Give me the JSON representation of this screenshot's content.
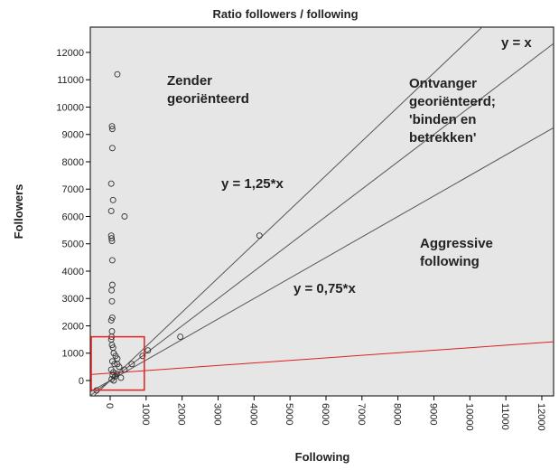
{
  "chart_data": {
    "type": "scatter",
    "title": "Ratio followers / following",
    "xlabel": "Following",
    "ylabel": "Followers",
    "xlim": [
      -552,
      12327
    ],
    "ylim": [
      -562,
      12925
    ],
    "xticks": [
      0,
      1000,
      2000,
      3000,
      4000,
      5000,
      6000,
      7000,
      8000,
      9000,
      10000,
      11000,
      12000
    ],
    "yticks": [
      0,
      1000,
      2000,
      3000,
      4000,
      5000,
      6000,
      7000,
      8000,
      9000,
      10000,
      11000,
      12000
    ],
    "series": [
      {
        "color": "#333333",
        "x": [
          200,
          50,
          60,
          60,
          30,
          80,
          30,
          400,
          30,
          40,
          50,
          60,
          60,
          40,
          50,
          60,
          30,
          50,
          40,
          30,
          50,
          80,
          100,
          150,
          200,
          60,
          120,
          250,
          30,
          90,
          180,
          70,
          140,
          300,
          40,
          100,
          200,
          4150,
          1950,
          1050,
          900,
          600,
          400,
          -380
        ],
        "y": [
          11200,
          9300,
          9200,
          8500,
          7200,
          6600,
          6200,
          6000,
          5300,
          5200,
          5100,
          4400,
          3500,
          3300,
          2900,
          2300,
          2200,
          1800,
          1600,
          1500,
          1300,
          1200,
          1000,
          900,
          800,
          700,
          600,
          500,
          400,
          300,
          250,
          200,
          150,
          100,
          50,
          0,
          600,
          5300,
          1600,
          1100,
          900,
          600,
          400,
          -360
        ]
      }
    ],
    "reference_lines": [
      {
        "label": "y = x",
        "slope": 1,
        "intercept": 0,
        "color": "#555555"
      },
      {
        "label": "y = 1,25*x",
        "slope": 1.25,
        "intercept": 0,
        "color": "#555555"
      },
      {
        "label": "y = 0,75*x",
        "slope": 0.75,
        "intercept": 0,
        "color": "#555555"
      },
      {
        "slope": 0.093,
        "intercept": 270,
        "color": "#e02020"
      }
    ],
    "zoom_box": {
      "x": [
        -552,
        950
      ],
      "y": [
        -350,
        1600
      ],
      "color": "#e02020"
    },
    "annotations": [
      {
        "lines": [
          "Zender",
          "georiënteerd"
        ]
      },
      {
        "lines": [
          "Ontvanger",
          "georiënteerd;",
          "'binden en",
          "betrekken'"
        ]
      },
      {
        "lines": [
          "Aggressive",
          "following"
        ]
      }
    ]
  }
}
